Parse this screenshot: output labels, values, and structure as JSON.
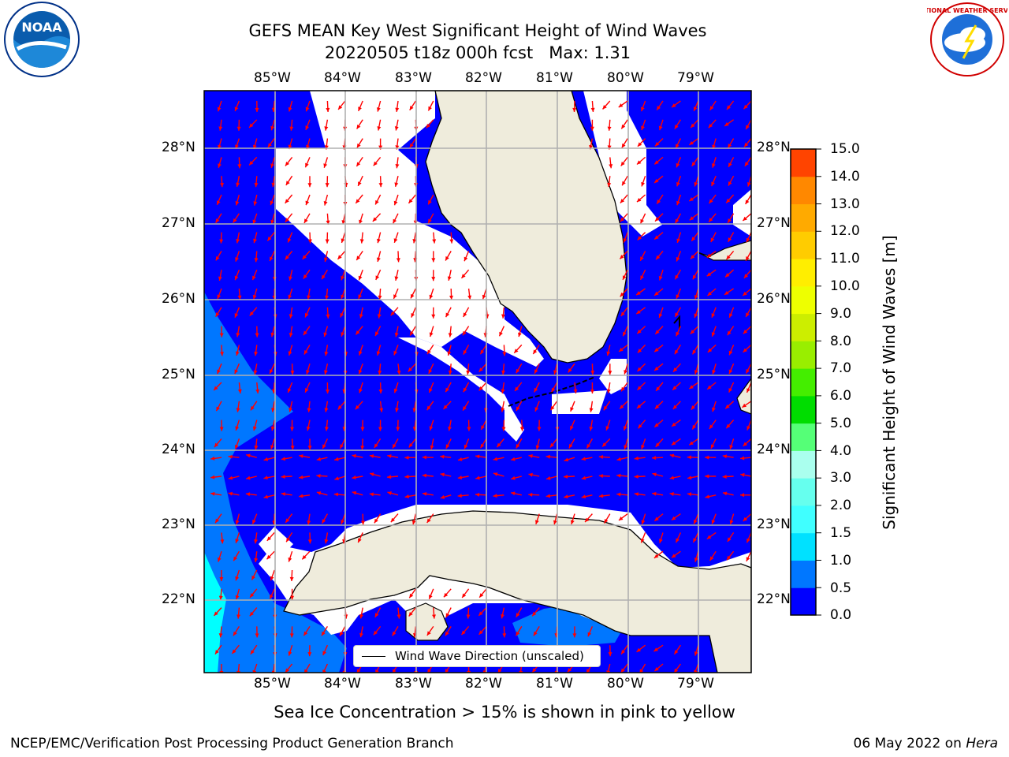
{
  "title": {
    "line1": "GEFS MEAN Key West Significant Height of Wind Waves",
    "line2": "20220505 t18z 000h fcst   Max: 1.31"
  },
  "map": {
    "lon_labels": [
      "85°W",
      "84°W",
      "83°W",
      "82°W",
      "81°W",
      "80°W",
      "79°W"
    ],
    "lat_labels": [
      "28°N",
      "27°N",
      "26°N",
      "25°N",
      "24°N",
      "23°N",
      "22°N"
    ],
    "colors": {
      "ocean_low": "#0000ff",
      "ocean_mid": "#0077ff",
      "ocean_high": "#00ffff",
      "land": "#efecdc",
      "arrows": "#ff0000",
      "grid": "#b0b0b0"
    }
  },
  "colorbar": {
    "label": "Significant Height of Wind Waves [m]",
    "ticks": [
      "0.0",
      "0.5",
      "1.0",
      "1.5",
      "2.0",
      "3.0",
      "4.0",
      "5.0",
      "6.0",
      "7.0",
      "8.0",
      "9.0",
      "10.0",
      "11.0",
      "12.0",
      "13.0",
      "14.0",
      "15.0"
    ],
    "colors": [
      "#0000ff",
      "#0077ff",
      "#00e1ff",
      "#40ffff",
      "#66ffee",
      "#aaffee",
      "#55ff77",
      "#00dd00",
      "#44ee00",
      "#99ee00",
      "#ccee00",
      "#eeff00",
      "#ffee00",
      "#ffcc00",
      "#ffaa00",
      "#ff8800",
      "#ff4400",
      "#ff0000"
    ]
  },
  "legend": {
    "label": "Wind Wave Direction (unscaled)"
  },
  "footnote": "Sea Ice Concentration > 15% is shown in pink to yellow",
  "credit": "NCEP/EMC/Verification Post Processing Product Generation Branch",
  "date": "06 May 2022 on",
  "system": "Hera",
  "logos": {
    "left": "NOAA",
    "right": "NATIONAL WEATHER SERVICE"
  }
}
